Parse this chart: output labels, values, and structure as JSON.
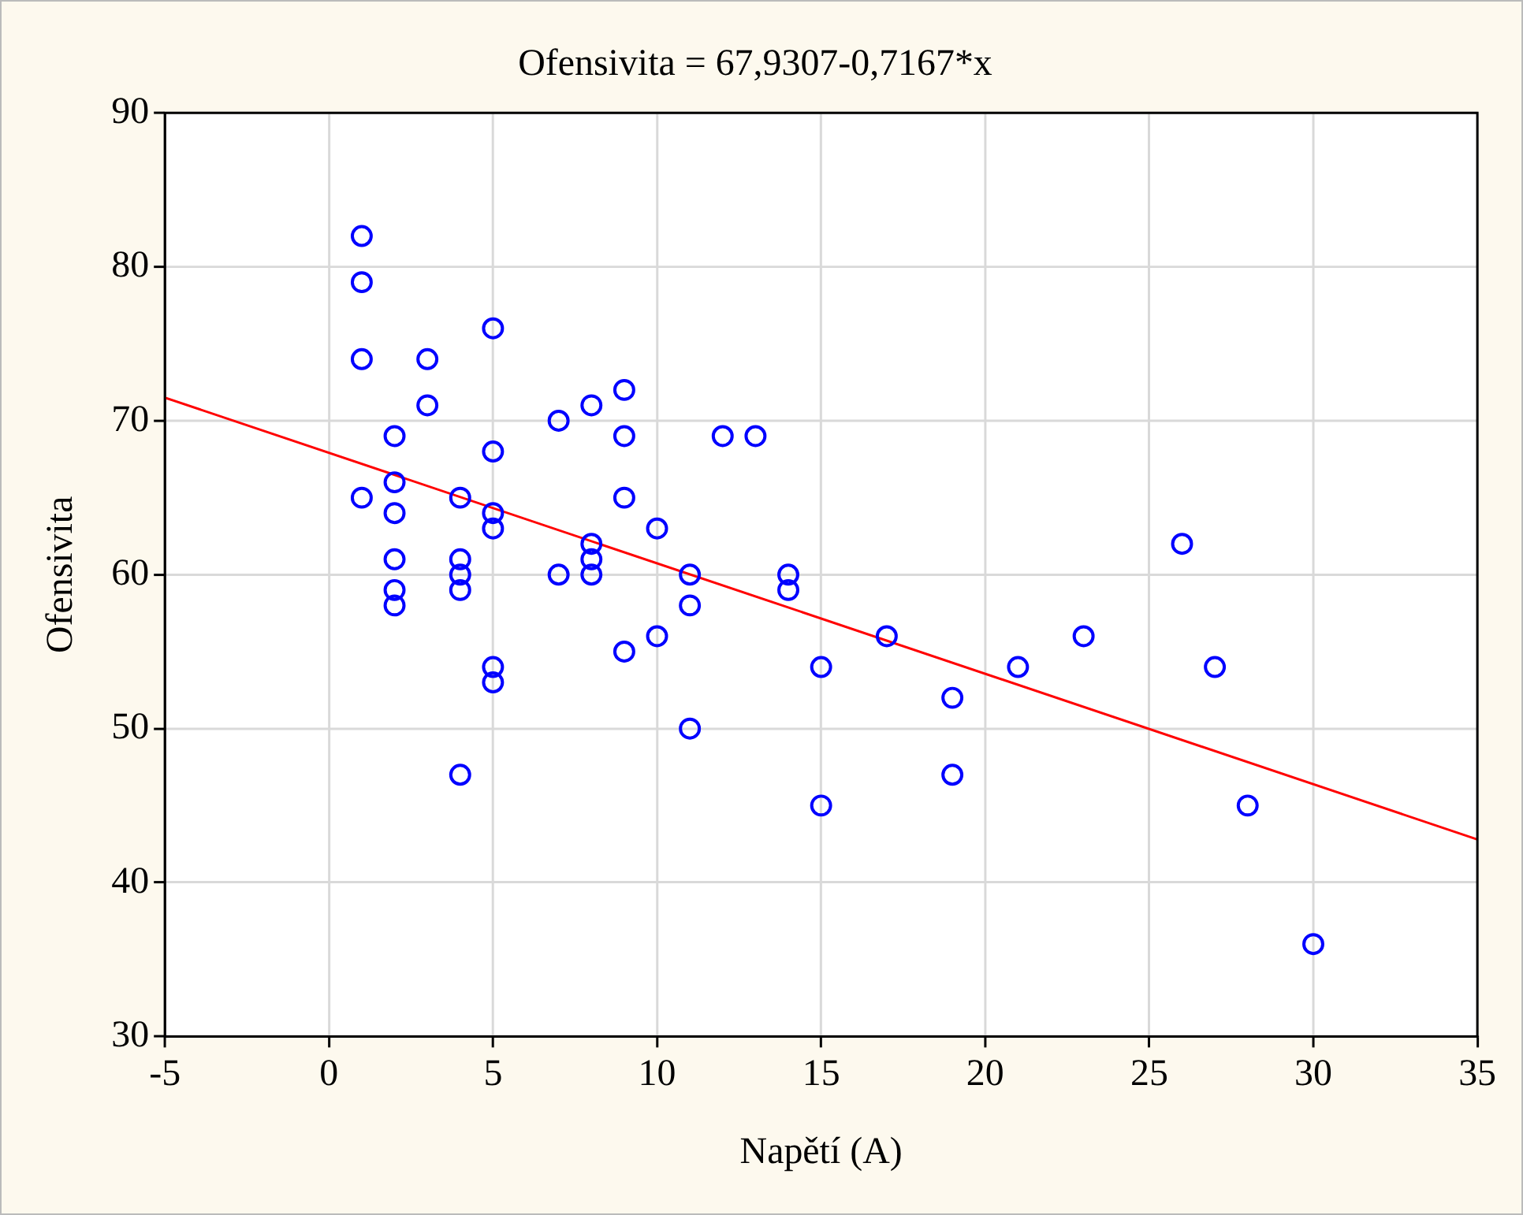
{
  "chart_data": {
    "type": "scatter",
    "title": "Ofensivita = 67,9307-0,7167*x",
    "xlabel": "Napětí (A)",
    "ylabel": "Ofensivita",
    "xlim": [
      -5,
      35
    ],
    "xticks": [
      -5,
      0,
      5,
      10,
      15,
      20,
      25,
      30,
      35
    ],
    "ylim": [
      30,
      90
    ],
    "yticks": [
      30,
      40,
      50,
      60,
      70,
      80,
      90
    ],
    "grid": true,
    "legend": false,
    "marker": "circle",
    "series": [
      {
        "color": "#0000ff",
        "x": [
          1,
          1,
          1,
          1,
          2,
          2,
          2,
          2,
          2,
          2,
          3,
          3,
          4,
          4,
          4,
          4,
          4,
          5,
          5,
          5,
          5,
          5,
          5,
          7,
          7,
          8,
          8,
          8,
          8,
          9,
          9,
          9,
          9,
          10,
          10,
          11,
          11,
          11,
          12,
          13,
          14,
          14,
          15,
          15,
          17,
          19,
          19,
          21,
          23,
          26,
          27,
          28,
          30
        ],
        "values": [
          82,
          79,
          74,
          65,
          69,
          66,
          64,
          61,
          59,
          58,
          74,
          71,
          65,
          61,
          60,
          59,
          47,
          76,
          68,
          64,
          63,
          54,
          53,
          70,
          60,
          71,
          62,
          61,
          60,
          72,
          69,
          65,
          55,
          63,
          56,
          60,
          58,
          50,
          69,
          69,
          60,
          59,
          54,
          45,
          56,
          52,
          47,
          54,
          56,
          62,
          54,
          45,
          36
        ]
      },
      {
        "type": "line",
        "color": "#ff0000",
        "marker": "none",
        "x": [
          -5,
          35
        ],
        "values": [
          71.5,
          42.8
        ]
      }
    ]
  }
}
